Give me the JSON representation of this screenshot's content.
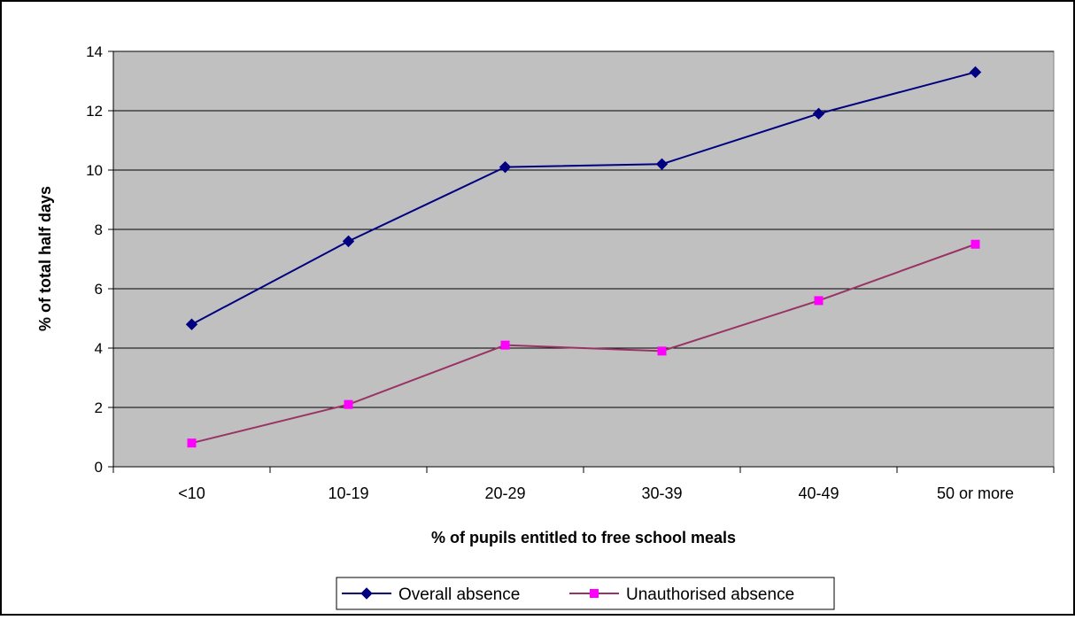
{
  "chart_data": {
    "type": "line",
    "title": "",
    "xlabel": "% of pupils entitled to free school meals",
    "ylabel": "% of total half days",
    "categories": [
      "<10",
      "10-19",
      "20-29",
      "30-39",
      "40-49",
      "50 or more"
    ],
    "ylim": [
      0,
      14
    ],
    "yticks": [
      "0",
      "2",
      "4",
      "6",
      "8",
      "10",
      "12",
      "14"
    ],
    "grid": true,
    "legend_position": "bottom",
    "plot_background": "#c0c0c0",
    "series": [
      {
        "name": "Overall absence",
        "values": [
          4.8,
          7.6,
          10.1,
          10.2,
          11.9,
          13.3
        ],
        "line_color": "#000080",
        "marker_color": "#000080",
        "marker": "diamond"
      },
      {
        "name": "Unauthorised absence",
        "values": [
          0.8,
          2.1,
          4.1,
          3.9,
          5.6,
          7.5
        ],
        "line_color": "#993366",
        "marker_color": "#ff00ff",
        "marker": "square"
      }
    ]
  }
}
